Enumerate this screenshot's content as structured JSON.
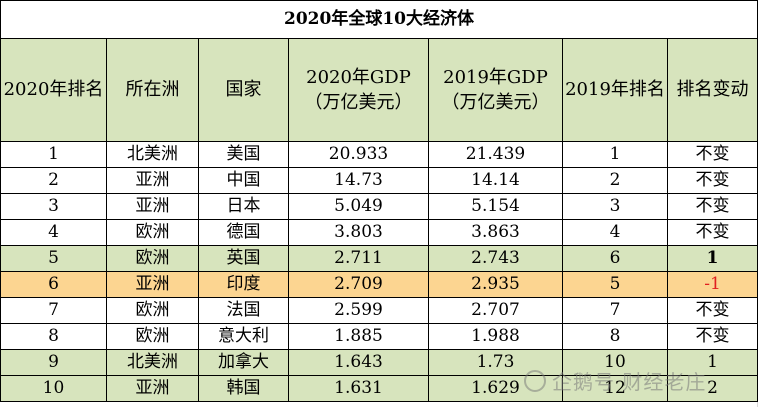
{
  "title": "2020年全球10大经济体",
  "headers": {
    "rank2020": "2020年排名",
    "continent": "所在洲",
    "country": "国家",
    "gdp2020": "2020年GDP",
    "gdp2020_unit": "（万亿美元）",
    "gdp2019": "2019年GDP",
    "gdp2019_unit": "（万亿美元）",
    "rank2019": "2019年排名",
    "change": "排名变动"
  },
  "rows": [
    {
      "rank2020": "1",
      "continent": "北美洲",
      "country": "美国",
      "gdp2020": "20.933",
      "gdp2019": "21.439",
      "rank2019": "1",
      "change": "不变"
    },
    {
      "rank2020": "2",
      "continent": "亚洲",
      "country": "中国",
      "gdp2020": "14.73",
      "gdp2019": "14.14",
      "rank2019": "2",
      "change": "不变"
    },
    {
      "rank2020": "3",
      "continent": "亚洲",
      "country": "日本",
      "gdp2020": "5.049",
      "gdp2019": "5.154",
      "rank2019": "3",
      "change": "不变"
    },
    {
      "rank2020": "4",
      "continent": "欧洲",
      "country": "德国",
      "gdp2020": "3.803",
      "gdp2019": "3.863",
      "rank2019": "4",
      "change": "不变"
    },
    {
      "rank2020": "5",
      "continent": "欧洲",
      "country": "英国",
      "gdp2020": "2.711",
      "gdp2019": "2.743",
      "rank2019": "6",
      "change": "1"
    },
    {
      "rank2020": "6",
      "continent": "亚洲",
      "country": "印度",
      "gdp2020": "2.709",
      "gdp2019": "2.935",
      "rank2019": "5",
      "change": "-1"
    },
    {
      "rank2020": "7",
      "continent": "欧洲",
      "country": "法国",
      "gdp2020": "2.599",
      "gdp2019": "2.707",
      "rank2019": "7",
      "change": "不变"
    },
    {
      "rank2020": "8",
      "continent": "欧洲",
      "country": "意大利",
      "gdp2020": "1.885",
      "gdp2019": "1.988",
      "rank2019": "8",
      "change": "不变"
    },
    {
      "rank2020": "9",
      "continent": "北美洲",
      "country": "加拿大",
      "gdp2020": "1.643",
      "gdp2019": "1.73",
      "rank2019": "10",
      "change": "1"
    },
    {
      "rank2020": "10",
      "continent": "亚洲",
      "country": "韩国",
      "gdp2020": "1.631",
      "gdp2019": "1.629",
      "rank2019": "12",
      "change": "2"
    }
  ],
  "watermark": "企鹅号 财经老庄",
  "colors": {
    "header_bg": "#d7e4bd",
    "highlight_bg": "#fcd591",
    "negative": "#e02020"
  }
}
